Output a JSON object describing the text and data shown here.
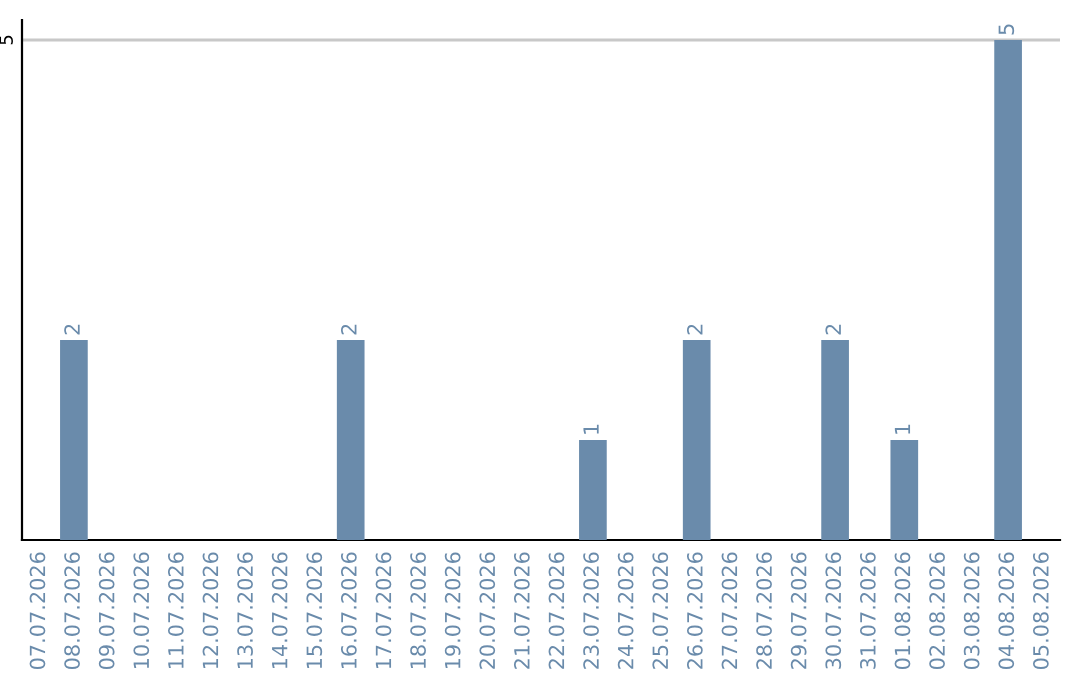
{
  "chart_data": {
    "type": "bar",
    "categories": [
      "07.07.2026",
      "08.07.2026",
      "09.07.2026",
      "10.07.2026",
      "11.07.2026",
      "12.07.2026",
      "13.07.2026",
      "14.07.2026",
      "15.07.2026",
      "16.07.2026",
      "17.07.2026",
      "18.07.2026",
      "19.07.2026",
      "20.07.2026",
      "21.07.2026",
      "22.07.2026",
      "23.07.2026",
      "24.07.2026",
      "25.07.2026",
      "26.07.2026",
      "27.07.2026",
      "28.07.2026",
      "29.07.2026",
      "30.07.2026",
      "31.07.2026",
      "01.08.2026",
      "02.08.2026",
      "03.08.2026",
      "04.08.2026",
      "05.08.2026"
    ],
    "values": [
      0,
      2,
      0,
      0,
      0,
      0,
      0,
      0,
      0,
      2,
      0,
      0,
      0,
      0,
      0,
      0,
      1,
      0,
      0,
      2,
      0,
      0,
      0,
      2,
      0,
      1,
      0,
      0,
      5,
      0
    ],
    "value_labels": [
      null,
      "2",
      null,
      null,
      null,
      null,
      null,
      null,
      null,
      "2",
      null,
      null,
      null,
      null,
      null,
      null,
      "1",
      null,
      null,
      "2",
      null,
      null,
      null,
      "2",
      null,
      "1",
      null,
      null,
      "5",
      null
    ],
    "color": "#6a8bab",
    "ylim": [
      0,
      5.2
    ],
    "yticks": [
      5
    ],
    "grid": "y"
  }
}
